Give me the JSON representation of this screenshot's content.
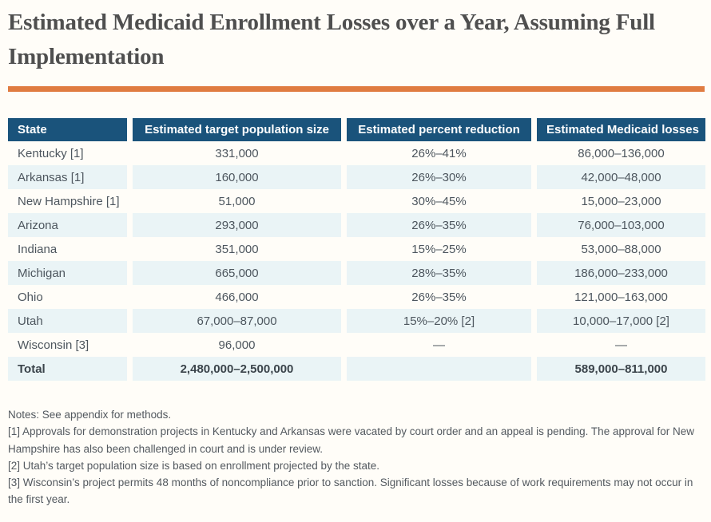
{
  "page": {
    "title": "Estimated Medicaid Enrollment Losses over a Year, Assuming Full Implementation"
  },
  "colors": {
    "accent_orange": "#e07c41",
    "table_header_bg": "#1a537b",
    "row_alt_bg": "#eaf4f6",
    "page_bg": "#fffdf8",
    "title_color": "#4f4f4f"
  },
  "table": {
    "columns": [
      "State",
      "Estimated target population size",
      "Estimated percent reduction",
      "Estimated Medicaid losses"
    ],
    "rows": [
      {
        "state": "Kentucky [1]",
        "population": "331,000",
        "reduction": "26%–41%",
        "losses": "86,000–136,000"
      },
      {
        "state": "Arkansas [1]",
        "population": "160,000",
        "reduction": "26%–30%",
        "losses": "42,000–48,000"
      },
      {
        "state": "New Hampshire [1]",
        "population": "51,000",
        "reduction": "30%–45%",
        "losses": "15,000–23,000"
      },
      {
        "state": "Arizona",
        "population": "293,000",
        "reduction": "26%–35%",
        "losses": "76,000–103,000"
      },
      {
        "state": "Indiana",
        "population": "351,000",
        "reduction": "15%–25%",
        "losses": "53,000–88,000"
      },
      {
        "state": "Michigan",
        "population": "665,000",
        "reduction": "28%–35%",
        "losses": "186,000–233,000"
      },
      {
        "state": "Ohio",
        "population": "466,000",
        "reduction": "26%–35%",
        "losses": "121,000–163,000"
      },
      {
        "state": "Utah",
        "population": "67,000–87,000",
        "reduction": "15%–20% [2]",
        "losses": "10,000–17,000 [2]"
      },
      {
        "state": "Wisconsin [3]",
        "population": "96,000",
        "reduction": "—",
        "losses": "—"
      }
    ],
    "total": {
      "state": "Total",
      "population": "2,480,000–2,500,000",
      "reduction": "",
      "losses": "589,000–811,000"
    }
  },
  "notes": {
    "line1": "Notes: See appendix for methods.",
    "line2": "[1] Approvals for demonstration projects in Kentucky and Arkansas were vacated by court order and an appeal is pending. The approval for New Hampshire has also been challenged in court and is under review.",
    "line3": "[2] Utah’s target population size is based on enrollment projected by the state.",
    "line4": "[3] Wisconsin’s project permits 48 months of noncompliance prior to sanction. Significant losses because of work requirements may not occur in the first year."
  }
}
